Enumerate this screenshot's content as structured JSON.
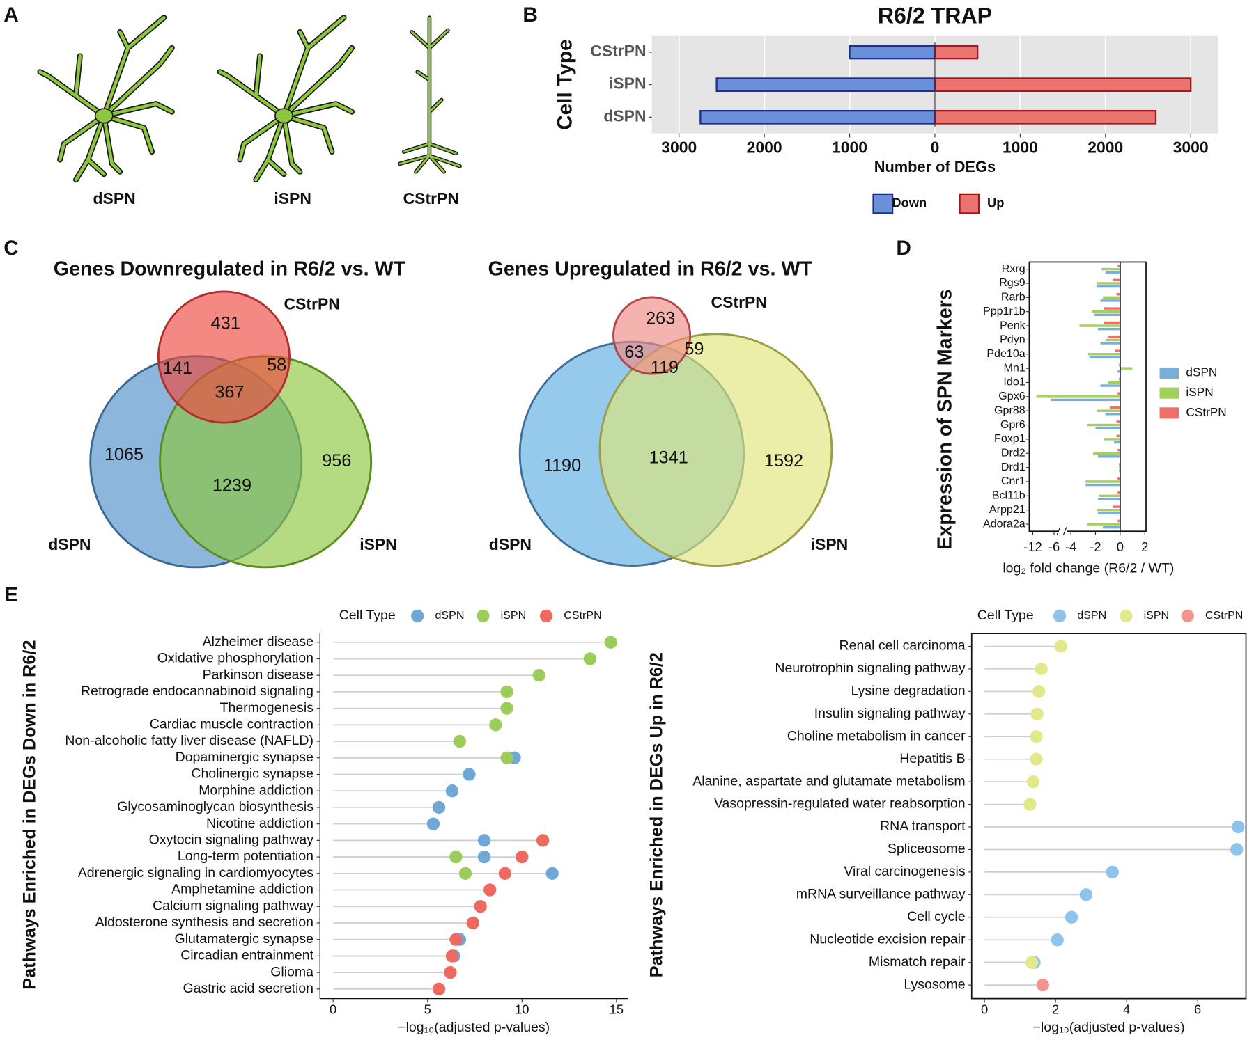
{
  "panel_labels": [
    "A",
    "B",
    "C",
    "D",
    "E"
  ],
  "neurons": [
    "dSPN",
    "iSPN",
    "CStrPN"
  ],
  "chart_data": [
    {
      "type": "bar",
      "orientation": "horizontal",
      "title": "R6/2 TRAP",
      "ylabel": "Cell Type",
      "xlabel": "Number of DEGs",
      "categories": [
        "CStrPN",
        "iSPN",
        "dSPN"
      ],
      "series": [
        {
          "name": "Down",
          "color": "#6b8fd8",
          "edge": "#1c2e8c",
          "values": [
            -1000,
            -2560,
            -2750
          ]
        },
        {
          "name": "Up",
          "color": "#e97470",
          "edge": "#a3141c",
          "values": [
            500,
            3000,
            2590
          ]
        }
      ],
      "xlim": [
        -3320,
        3320
      ],
      "xticks": [
        {
          "value": -3000,
          "label": "3000"
        },
        {
          "value": -2000,
          "label": "2000"
        },
        {
          "value": -1000,
          "label": "1000"
        },
        0,
        1000,
        2000,
        3000
      ],
      "grid": true,
      "legend": "bottom"
    },
    {
      "type": "venn",
      "title": "Genes Downregulated in R6/2 vs. WT",
      "sets": [
        {
          "name": "dSPN",
          "color": "#4f8fc7",
          "edge": "#3a6890"
        },
        {
          "name": "iSPN",
          "color": "#8cc63f",
          "edge": "#5b8a1e"
        },
        {
          "name": "CStrPN",
          "color": "#ec4a3f",
          "edge": "#b03030"
        }
      ],
      "regions": {
        "d": 1065,
        "i": 956,
        "c": 431,
        "di": 1239,
        "dc": 141,
        "ic": 58,
        "dic": 367
      }
    },
    {
      "type": "venn",
      "title": "Genes Upregulated in R6/2 vs. WT",
      "sets": [
        {
          "name": "dSPN",
          "color": "#5dade2",
          "edge": "#3e6f96"
        },
        {
          "name": "iSPN",
          "color": "#dfe57a",
          "edge": "#9a9d45"
        },
        {
          "name": "CStrPN",
          "color": "#f08b84",
          "edge": "#b04848"
        }
      ],
      "regions": {
        "d": 1190,
        "i": 1592,
        "c": 263,
        "di": 1341,
        "dc": 63,
        "ic": 59,
        "dic": 119
      }
    },
    {
      "type": "bar",
      "orientation": "horizontal",
      "ylabel": "Expression of SPN Markers",
      "xlabel": "log₂ fold change (R6/2 / WT)",
      "categories": [
        "Rxrg",
        "Rgs9",
        "Rarb",
        "Ppp1r1b",
        "Penk",
        "Pdyn",
        "Pde10a",
        "Mn1",
        "Ido1",
        "Gpx6",
        "Gpr88",
        "Gpr6",
        "Foxp1",
        "Drd2",
        "Drd1",
        "Cnr1",
        "Bcl11b",
        "Arpp21",
        "Adora2a"
      ],
      "series": [
        {
          "name": "dSPN",
          "color": "#7aaed6",
          "values": [
            -1.2,
            -1.9,
            -1.6,
            -2.1,
            -1.8,
            -1.6,
            -2.5,
            -0.2,
            -1.6,
            -7,
            -1.2,
            -2.0,
            -0.5,
            -1.8,
            -0.1,
            -2.8,
            -1.8,
            -1.8,
            -1.4
          ]
        },
        {
          "name": "iSPN",
          "color": "#a3cf5b",
          "values": [
            -1.5,
            -1.9,
            -1.4,
            -2.3,
            -3.3,
            -1.2,
            -2.6,
            1.0,
            -1.0,
            -11,
            -1.9,
            -2.7,
            -1.3,
            -2.2,
            -0.1,
            -2.8,
            -1.7,
            -1.9,
            -2.7
          ]
        },
        {
          "name": "CStrPN",
          "color": "#ef6f66",
          "values": [
            -0.2,
            -0.6,
            -0.3,
            -1.3,
            -1.3,
            -1.0,
            -0.4,
            -0.1,
            -0.1,
            -0.2,
            -0.8,
            -0.3,
            -0.3,
            -0.2,
            -0.1,
            -0.2,
            -0.2,
            -0.6,
            -0.2
          ]
        }
      ],
      "xlim": [
        -13,
        2.1
      ],
      "xbreak": [
        -6,
        -4
      ],
      "xticks": [
        -12,
        -6,
        -4,
        -2,
        0,
        2
      ],
      "legend": "right"
    },
    {
      "type": "lollipop",
      "ylabel": "Pathways Enriched in DEGs Down in R6/2",
      "xlabel": "−log₁₀(adjusted p-values)",
      "legend_title": "Cell Type",
      "categories": [
        "Alzheimer disease",
        "Oxidative phosphorylation",
        "Parkinson disease",
        "Retrograde endocannabinoid signaling",
        "Thermogenesis",
        "Cardiac muscle contraction",
        "Non-alcoholic fatty liver disease (NAFLD)",
        "Dopaminergic synapse",
        "Cholinergic synapse",
        "Morphine addiction",
        "Glycosaminoglycan biosynthesis",
        "Nicotine addiction",
        "Oxytocin signaling pathway",
        "Long-term potentiation",
        "Adrenergic signaling in cardiomyocytes",
        "Amphetamine addiction",
        "Calcium signaling pathway",
        "Aldosterone synthesis and secretion",
        "Glutamatergic synapse",
        "Circadian entrainment",
        "Glioma",
        "Gastric acid secretion"
      ],
      "series": [
        {
          "name": "dSPN",
          "color": "#6fa8d6",
          "values": [
            null,
            null,
            null,
            null,
            null,
            null,
            null,
            9.6,
            7.2,
            6.3,
            5.6,
            5.3,
            8.0,
            8.0,
            11.6,
            null,
            null,
            null,
            6.7,
            6.4,
            null,
            null
          ]
        },
        {
          "name": "iSPN",
          "color": "#9ccc5a",
          "values": [
            14.7,
            13.6,
            10.9,
            9.2,
            9.2,
            8.6,
            6.7,
            9.2,
            null,
            null,
            null,
            null,
            null,
            6.5,
            7.0,
            null,
            null,
            null,
            null,
            null,
            null,
            null
          ]
        },
        {
          "name": "CStrPN",
          "color": "#ee6a5f",
          "values": [
            null,
            null,
            null,
            null,
            null,
            null,
            null,
            null,
            null,
            null,
            null,
            null,
            11.1,
            10.0,
            9.1,
            8.3,
            7.8,
            7.4,
            6.5,
            6.3,
            6.2,
            5.6
          ]
        }
      ],
      "xlim": [
        -0.7,
        15.6
      ],
      "xticks": [
        0,
        5,
        10,
        15
      ],
      "legend": "top",
      "frame": false
    },
    {
      "type": "lollipop",
      "ylabel": "Pathways Enriched in DEGs Up in R6/2",
      "xlabel": "−log₁₀(adjusted p-values)",
      "legend_title": "Cell Type",
      "categories": [
        "Renal cell carcinoma",
        "Neurotrophin signaling pathway",
        "Lysine degradation",
        "Insulin signaling pathway",
        "Choline metabolism in cancer",
        "Hepatitis B",
        "Alanine, aspartate and glutamate metabolism",
        "Vasopressin-regulated water reabsorption",
        "RNA transport",
        "Spliceosome",
        "Viral carcinogenesis",
        "mRNA surveillance pathway",
        "Cell cycle",
        "Nucleotide excision repair",
        "Mismatch repair",
        "Lysosome"
      ],
      "series": [
        {
          "name": "dSPN",
          "color": "#8ec3ec",
          "values": [
            null,
            null,
            null,
            null,
            null,
            null,
            null,
            null,
            7.14,
            7.1,
            3.6,
            2.86,
            2.45,
            2.05,
            1.4,
            null
          ]
        },
        {
          "name": "iSPN",
          "color": "#e2e98a",
          "values": [
            2.15,
            1.6,
            1.53,
            1.48,
            1.46,
            1.46,
            1.37,
            1.28,
            null,
            null,
            null,
            null,
            null,
            null,
            1.33,
            null
          ]
        },
        {
          "name": "CStrPN",
          "color": "#f1958e",
          "values": [
            null,
            null,
            null,
            null,
            null,
            null,
            null,
            null,
            null,
            null,
            null,
            null,
            null,
            null,
            null,
            1.64
          ]
        }
      ],
      "xlim": [
        -0.36,
        7.36
      ],
      "xticks": [
        0,
        2,
        4,
        6
      ],
      "legend": "top",
      "frame": true
    }
  ]
}
